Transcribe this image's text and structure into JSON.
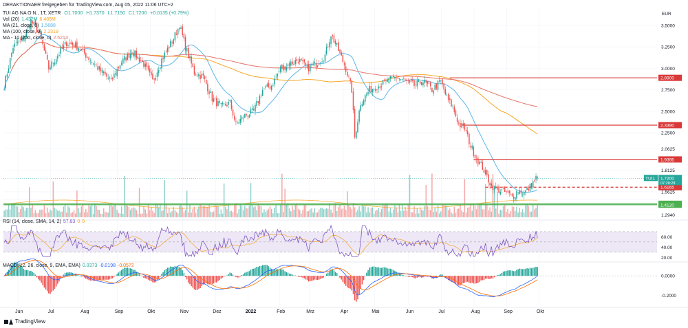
{
  "header": {
    "title_line": "DERAKTIONAER freigegeben für TradingView.com, Aug 05, 2022 11:06 UTC+2",
    "symbol_line": [
      "TUI AG NA O.N., 1T, XETR",
      "O1.7000",
      "H1.7370",
      "L1.7150",
      "C1.7200",
      "+0.0135 (+0.79%)"
    ],
    "vol_line": [
      "Vol (20)",
      "1.432M",
      "6.485M"
    ],
    "ma21_line": [
      "MA (21, close, 0)",
      "1.5688"
    ],
    "ma100_line": [
      "MA (100, close, 0)",
      "2.2319"
    ],
    "ma200_line": [
      "MA - 10 (200, close, 0)",
      "2.5213"
    ]
  },
  "rsi_label": [
    "RSI (14, close, SMA, 14, 2)",
    "57.83",
    "0",
    "0"
  ],
  "macd_label": [
    "MACD (12, 26, close, 9, EMA, EMA)",
    "0.0373",
    "-0.0198",
    "-0.0572"
  ],
  "currency": "EUR",
  "footer_brand": "TradingView",
  "colors": {
    "up": "#26a69a",
    "down": "#ef5350",
    "ma21": "#5bb6e8",
    "ma100": "#f5a623",
    "ma200": "#e57368",
    "level": "#d93838",
    "support": "#4caf50",
    "rsi": "#7e57c2",
    "rsi_bg": "#ede7f6",
    "macd": "#2962ff",
    "signal": "#ff6d00"
  },
  "chart_data": {
    "type": "candlestick",
    "x_ticks": [
      "Jun",
      "Jul",
      "Aug",
      "Sep",
      "Okt",
      "Nov",
      "Dez",
      "2022",
      "Feb",
      "Mrz",
      "Apr",
      "Mai",
      "Jun",
      "Jul",
      "Aug",
      "Sep",
      "Okt"
    ],
    "y_ticks": [
      "3.5000",
      "3.2500",
      "3.0000",
      "2.7500",
      "2.5000",
      "2.2500",
      "2.0625",
      "1.8125",
      "1.5625",
      "1.4690",
      "1.2940"
    ],
    "ylim": [
      1.25,
      3.7
    ],
    "close_anchors": [
      [
        0,
        2.8
      ],
      [
        6,
        3.25
      ],
      [
        13,
        3.35
      ],
      [
        18,
        3.55
      ],
      [
        24,
        3.4
      ],
      [
        30,
        3.0
      ],
      [
        36,
        3.15
      ],
      [
        42,
        3.3
      ],
      [
        50,
        3.25
      ],
      [
        58,
        3.1
      ],
      [
        66,
        2.95
      ],
      [
        72,
        2.85
      ],
      [
        78,
        3.05
      ],
      [
        86,
        3.2
      ],
      [
        94,
        3.05
      ],
      [
        100,
        2.85
      ],
      [
        106,
        3.1
      ],
      [
        114,
        3.35
      ],
      [
        118,
        3.5
      ],
      [
        122,
        3.25
      ],
      [
        128,
        2.95
      ],
      [
        134,
        2.9
      ],
      [
        140,
        2.65
      ],
      [
        146,
        2.55
      ],
      [
        152,
        2.6
      ],
      [
        156,
        2.35
      ],
      [
        162,
        2.45
      ],
      [
        168,
        2.5
      ],
      [
        174,
        2.75
      ],
      [
        180,
        2.8
      ],
      [
        186,
        3.0
      ],
      [
        192,
        3.05
      ],
      [
        198,
        3.1
      ],
      [
        204,
        3.0
      ],
      [
        210,
        3.05
      ],
      [
        216,
        3.15
      ],
      [
        220,
        3.4
      ],
      [
        224,
        3.25
      ],
      [
        230,
        3.0
      ],
      [
        234,
        2.75
      ],
      [
        236,
        2.2
      ],
      [
        240,
        2.6
      ],
      [
        246,
        2.75
      ],
      [
        252,
        2.8
      ],
      [
        258,
        2.85
      ],
      [
        264,
        2.9
      ],
      [
        270,
        2.85
      ],
      [
        276,
        2.8
      ],
      [
        282,
        2.85
      ],
      [
        288,
        2.75
      ],
      [
        294,
        2.85
      ],
      [
        298,
        2.65
      ],
      [
        302,
        2.55
      ],
      [
        306,
        2.35
      ],
      [
        310,
        2.3
      ],
      [
        314,
        2.1
      ],
      [
        318,
        1.95
      ],
      [
        322,
        1.85
      ],
      [
        326,
        1.7
      ],
      [
        330,
        1.6
      ],
      [
        334,
        1.58
      ],
      [
        338,
        1.55
      ],
      [
        342,
        1.5
      ],
      [
        346,
        1.58
      ],
      [
        350,
        1.55
      ],
      [
        354,
        1.62
      ],
      [
        358,
        1.72
      ]
    ],
    "levels": [
      {
        "label": "2.8900",
        "value": 2.89,
        "style": "solid",
        "color": "level"
      },
      {
        "label": "2.3390",
        "value": 2.339,
        "style": "solid",
        "color": "level"
      },
      {
        "label": "1.9395",
        "value": 1.9395,
        "style": "solid",
        "color": "level"
      },
      {
        "label": "1.6165",
        "value": 1.6165,
        "style": "dashed",
        "color": "level"
      },
      {
        "label": "1.4235",
        "value": 1.4235,
        "style": "solid",
        "color": "support"
      },
      {
        "label": "1.4120",
        "value": 1.412,
        "style": "solid",
        "color": "support"
      }
    ],
    "last_price": {
      "symbol": "TUI1",
      "value": 1.72,
      "label": "1.7200",
      "countdown": "07:28:28"
    },
    "rsi": {
      "ylim": [
        15,
        90
      ],
      "y_ticks": [
        "60.00",
        "40.00",
        "20.00"
      ],
      "bands": [
        70,
        30
      ]
    },
    "macd": {
      "ylim": [
        -0.3,
        0.12
      ],
      "y_ticks": [
        "0.0000",
        "-0.2000"
      ]
    }
  }
}
